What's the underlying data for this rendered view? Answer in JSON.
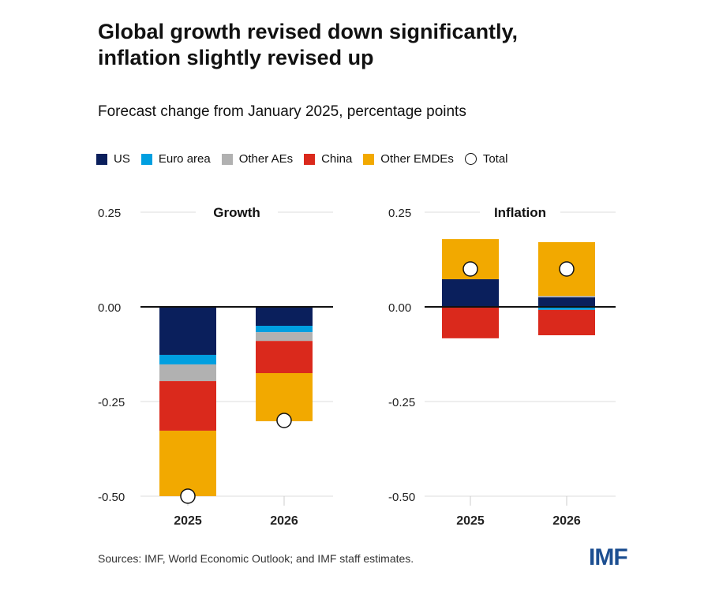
{
  "title": "Global growth revised down significantly, inflation slightly revised up",
  "title_lines": [
    "Global growth revised down significantly,",
    "inflation slightly revised up"
  ],
  "subtitle": "Forecast change from January 2025, percentage points",
  "source": "Sources: IMF, World Economic Outlook; and IMF staff estimates.",
  "logo": "IMF",
  "legend": [
    {
      "label": "US",
      "color": "#0a1f5c",
      "kind": "square"
    },
    {
      "label": "Euro area",
      "color": "#009fe0",
      "kind": "square"
    },
    {
      "label": "Other AEs",
      "color": "#b1b1b1",
      "kind": "square"
    },
    {
      "label": "China",
      "color": "#da291c",
      "kind": "square"
    },
    {
      "label": "Other EMDEs",
      "color": "#f2a900",
      "kind": "square"
    },
    {
      "label": "Total",
      "color": "#ffffff",
      "kind": "circle"
    }
  ],
  "chart_data": [
    {
      "type": "bar",
      "stacked": true,
      "title": "Growth",
      "categories": [
        "2025",
        "2026"
      ],
      "ylim": [
        -0.5,
        0.25
      ],
      "yticks": [
        "0.25",
        "0.00",
        "-0.25",
        "-0.50"
      ],
      "grid": true,
      "series": [
        {
          "name": "US",
          "values": [
            -0.127,
            -0.05
          ]
        },
        {
          "name": "Euro area",
          "values": [
            -0.025,
            -0.017
          ]
        },
        {
          "name": "Other AEs",
          "values": [
            -0.044,
            -0.023
          ]
        },
        {
          "name": "China",
          "values": [
            -0.131,
            -0.085
          ]
        },
        {
          "name": "Other EMDEs",
          "values": [
            -0.173,
            -0.127
          ]
        }
      ],
      "total": [
        -0.5,
        -0.3
      ]
    },
    {
      "type": "bar",
      "stacked": true,
      "title": "Inflation",
      "categories": [
        "2025",
        "2026"
      ],
      "ylim": [
        -0.5,
        0.25
      ],
      "yticks": [
        "0.25",
        "0.00",
        "-0.25",
        "-0.50"
      ],
      "grid": true,
      "series": [
        {
          "name": "US",
          "values": [
            0.073,
            0.025
          ]
        },
        {
          "name": "Euro area",
          "values": [
            0.0,
            -0.008
          ]
        },
        {
          "name": "Other AEs",
          "values": [
            0.0,
            0.004
          ]
        },
        {
          "name": "China",
          "values": [
            -0.083,
            -0.067
          ]
        },
        {
          "name": "Other EMDEs",
          "values": [
            0.106,
            0.142
          ]
        }
      ],
      "total": [
        0.1,
        0.1
      ]
    }
  ]
}
